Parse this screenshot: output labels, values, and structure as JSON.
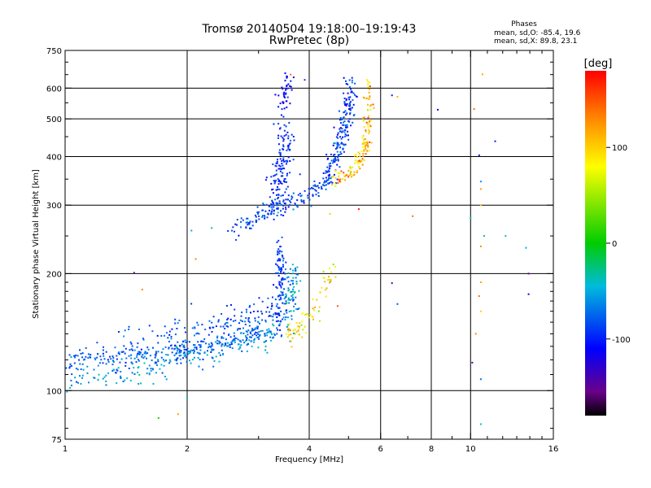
{
  "chart_data": {
    "type": "scatter",
    "title": "Tromsø 20140504  19:18:00–19:19:43",
    "subtitle": "RwPretec (8p)",
    "xlabel": "Frequency [MHz]",
    "ylabel": "Stationary phase Virtual Height [km]",
    "x_scale": "log",
    "y_scale": "log",
    "xlim": [
      1,
      16
    ],
    "ylim": [
      75,
      750
    ],
    "x_ticks": [
      1,
      2,
      4,
      6,
      8,
      10,
      16
    ],
    "x_tick_labels": [
      "1",
      "2",
      "4",
      "6",
      "8",
      "10",
      "16"
    ],
    "x_grid": [
      2,
      4,
      6,
      8,
      10
    ],
    "x_minor": [
      3,
      5,
      7,
      9,
      11,
      12,
      13,
      14,
      15
    ],
    "y_ticks": [
      75,
      100,
      200,
      300,
      400,
      500,
      600,
      750
    ],
    "y_tick_labels": [
      "75",
      "100",
      "200",
      "300",
      "400",
      "500",
      "600",
      "750"
    ],
    "y_grid": [
      100,
      200,
      300,
      400,
      500,
      600
    ],
    "grid": true,
    "stats_title": "Phases",
    "stats_lines": [
      "mean, sd,O: -85.4, 19.6",
      "mean, sd,X:  89.8, 23.1"
    ],
    "colorbar": {
      "label": "[deg]",
      "range": [
        -180,
        180
      ],
      "ticks": [
        100,
        0,
        -100
      ],
      "tick_labels": [
        "100",
        "0",
        "-100"
      ],
      "stops": [
        {
          "v": -180,
          "c": "#000000"
        },
        {
          "v": -155,
          "c": "#6a008a"
        },
        {
          "v": -110,
          "c": "#0000ff"
        },
        {
          "v": -45,
          "c": "#00bbdd"
        },
        {
          "v": 0,
          "c": "#00cc00"
        },
        {
          "v": 80,
          "c": "#ffff00"
        },
        {
          "v": 130,
          "c": "#ff8800"
        },
        {
          "v": 180,
          "c": "#ff0000"
        }
      ]
    },
    "clusters": [
      {
        "name": "O-trace low ramp",
        "points": [
          [
            1,
            118
          ],
          [
            1.2,
            121
          ],
          [
            1.5,
            123
          ],
          [
            1.8,
            126
          ],
          [
            2.0,
            128
          ],
          [
            2.4,
            131
          ],
          [
            2.8,
            137
          ],
          [
            3.0,
            148
          ]
        ],
        "spread": 0.035,
        "n": 300,
        "phase": -80,
        "phase_sd": 10
      },
      {
        "name": "O-trace low lower branch",
        "points": [
          [
            1,
            107
          ],
          [
            1.3,
            109
          ],
          [
            1.6,
            114
          ],
          [
            2.0,
            122
          ],
          [
            2.5,
            128
          ],
          [
            3.0,
            136
          ],
          [
            3.3,
            145
          ]
        ],
        "spread": 0.04,
        "n": 180,
        "phase": -55,
        "phase_sd": 15
      },
      {
        "name": "O-trace low scatter",
        "points": [
          [
            1.4,
            130
          ],
          [
            1.8,
            140
          ],
          [
            2.2,
            148
          ],
          [
            2.6,
            152
          ],
          [
            3.0,
            158
          ],
          [
            3.3,
            165
          ]
        ],
        "spread": 0.05,
        "n": 140,
        "phase": -85,
        "phase_sd": 12
      },
      {
        "name": "O-trace vertical 3.4 MHz",
        "points": [
          [
            3.35,
            140
          ],
          [
            3.38,
            170
          ],
          [
            3.4,
            200
          ],
          [
            3.42,
            235
          ]
        ],
        "spread": 0.03,
        "n": 110,
        "phase": -90,
        "phase_sd": 10
      },
      {
        "name": "O-trace vertical 3.6 MHz",
        "points": [
          [
            3.5,
            140
          ],
          [
            3.6,
            175
          ],
          [
            3.7,
            210
          ]
        ],
        "spread": 0.04,
        "n": 80,
        "phase": -60,
        "phase_sd": 20
      },
      {
        "name": "X-trace low",
        "points": [
          [
            3.5,
            138
          ],
          [
            3.8,
            145
          ],
          [
            4.1,
            160
          ],
          [
            4.4,
            185
          ],
          [
            4.6,
            205
          ]
        ],
        "spread": 0.03,
        "n": 70,
        "phase": 90,
        "phase_sd": 25
      },
      {
        "name": "O-trace upper ramp",
        "points": [
          [
            2.6,
            258
          ],
          [
            2.9,
            270
          ],
          [
            3.2,
            295
          ],
          [
            3.4,
            300
          ],
          [
            3.8,
            310
          ],
          [
            4.2,
            330
          ],
          [
            4.6,
            360
          ]
        ],
        "spread": 0.025,
        "n": 180,
        "phase": -85,
        "phase_sd": 12
      },
      {
        "name": "O-trace upper cusp",
        "points": [
          [
            3.3,
            300
          ],
          [
            3.4,
            350
          ],
          [
            3.45,
            400
          ],
          [
            3.5,
            460
          ]
        ],
        "spread": 0.05,
        "n": 140,
        "phase": -95,
        "phase_sd": 10
      },
      {
        "name": "O-trace upper tower",
        "points": [
          [
            3.45,
            520
          ],
          [
            3.5,
            590
          ],
          [
            3.55,
            640
          ]
        ],
        "spread": 0.03,
        "n": 40,
        "phase": -110,
        "phase_sd": 10
      },
      {
        "name": "O-trace critical",
        "points": [
          [
            4.4,
            360
          ],
          [
            4.7,
            410
          ],
          [
            4.9,
            470
          ],
          [
            5.0,
            540
          ],
          [
            5.05,
            630
          ]
        ],
        "spread": 0.03,
        "n": 170,
        "phase": -90,
        "phase_sd": 15
      },
      {
        "name": "X-trace upper",
        "points": [
          [
            4.6,
            345
          ],
          [
            5.0,
            360
          ],
          [
            5.3,
            390
          ],
          [
            5.5,
            430
          ],
          [
            5.6,
            500
          ],
          [
            5.65,
            630
          ]
        ],
        "spread": 0.025,
        "n": 140,
        "phase": 105,
        "phase_sd": 25
      }
    ],
    "sparse_points": [
      [
        2.05,
        258,
        -50
      ],
      [
        2.3,
        262,
        -30
      ],
      [
        1.48,
        201,
        -150
      ],
      [
        1.55,
        182,
        130
      ],
      [
        1.7,
        85,
        10
      ],
      [
        1.9,
        87,
        120
      ],
      [
        2.0,
        95,
        -40
      ],
      [
        2.1,
        218,
        130
      ],
      [
        3.6,
        650,
        140
      ],
      [
        3.9,
        630,
        -90
      ],
      [
        4.5,
        285,
        100
      ],
      [
        4.7,
        165,
        150
      ],
      [
        5.3,
        293,
        170
      ],
      [
        6.4,
        189,
        -150
      ],
      [
        6.6,
        167,
        -80
      ],
      [
        6.6,
        570,
        110
      ],
      [
        6.4,
        575,
        -100
      ],
      [
        7.2,
        281,
        140
      ],
      [
        8.3,
        528,
        -120
      ],
      [
        10.2,
        530,
        140
      ],
      [
        10.0,
        278,
        -40
      ],
      [
        10.1,
        118,
        -150
      ],
      [
        10.5,
        403,
        -100
      ],
      [
        10.6,
        345,
        -60
      ],
      [
        10.6,
        330,
        120
      ],
      [
        10.6,
        300,
        110
      ],
      [
        10.6,
        235,
        130
      ],
      [
        10.6,
        190,
        120
      ],
      [
        10.5,
        175,
        140
      ],
      [
        10.6,
        160,
        100
      ],
      [
        10.6,
        107,
        -70
      ],
      [
        10.7,
        651,
        120
      ],
      [
        10.6,
        82,
        -40
      ],
      [
        10.8,
        250,
        -20
      ],
      [
        11.5,
        438,
        -100
      ],
      [
        12.2,
        250,
        -40
      ],
      [
        13.7,
        233,
        -50
      ],
      [
        13.9,
        200,
        -150
      ],
      [
        13.9,
        177,
        -120
      ],
      [
        10.3,
        140,
        130
      ]
    ]
  }
}
